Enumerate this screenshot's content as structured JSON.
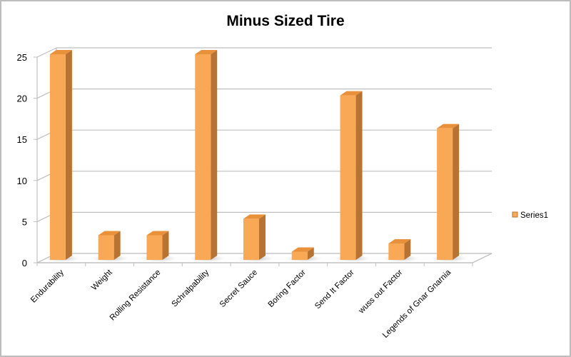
{
  "chart_data": {
    "type": "bar",
    "title": "Minus Sized Tire",
    "xlabel": "",
    "ylabel": "",
    "categories": [
      "Endurability",
      "Weight",
      "Rolling Resistance",
      "Schralpability",
      "Secret Sauce",
      "Boring Factor",
      "Send It Factor",
      "wuss out Factor",
      "Legends of Gnar Gnarnia"
    ],
    "series": [
      {
        "name": "Series1",
        "values": [
          25,
          3,
          3,
          25,
          5,
          1,
          20,
          2,
          16
        ]
      }
    ],
    "ylim": [
      0,
      25
    ],
    "yticks": [
      0,
      5,
      10,
      15,
      20,
      25
    ],
    "grid": true,
    "legend_position": "right",
    "style": "3d-column",
    "colors": {
      "bar_front": "#F9A856",
      "bar_side": "#B87333",
      "bar_top": "#E8913A",
      "grid": "#BFBFBF"
    }
  }
}
